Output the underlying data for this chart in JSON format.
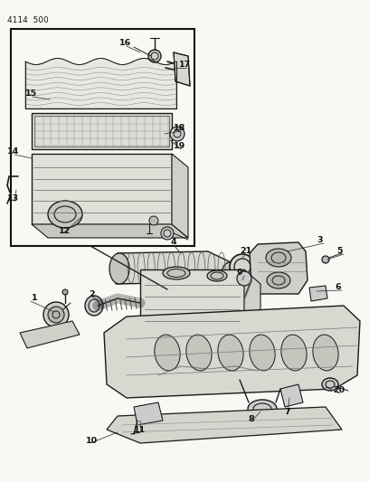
{
  "title": "4114 500",
  "bg": "#f5f5f0",
  "lc": "#1a1a1a",
  "tc": "#1a1a1a",
  "fig_width": 4.08,
  "fig_height": 5.33,
  "dpi": 100
}
